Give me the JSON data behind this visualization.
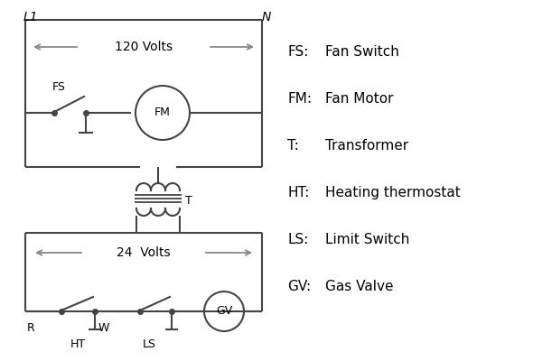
{
  "bg_color": "#ffffff",
  "line_color": "#444444",
  "arrow_color": "#888888",
  "text_color": "#000000",
  "legend_items": [
    [
      "FS:",
      "Fan Switch"
    ],
    [
      "FM:",
      "Fan Motor"
    ],
    [
      "T:",
      "Transformer"
    ],
    [
      "HT:",
      "Heating thermostat"
    ],
    [
      "LS:",
      "Limit Switch"
    ],
    [
      "GV:",
      "Gas Valve"
    ]
  ],
  "figsize": [
    5.9,
    4.0
  ],
  "dpi": 100
}
